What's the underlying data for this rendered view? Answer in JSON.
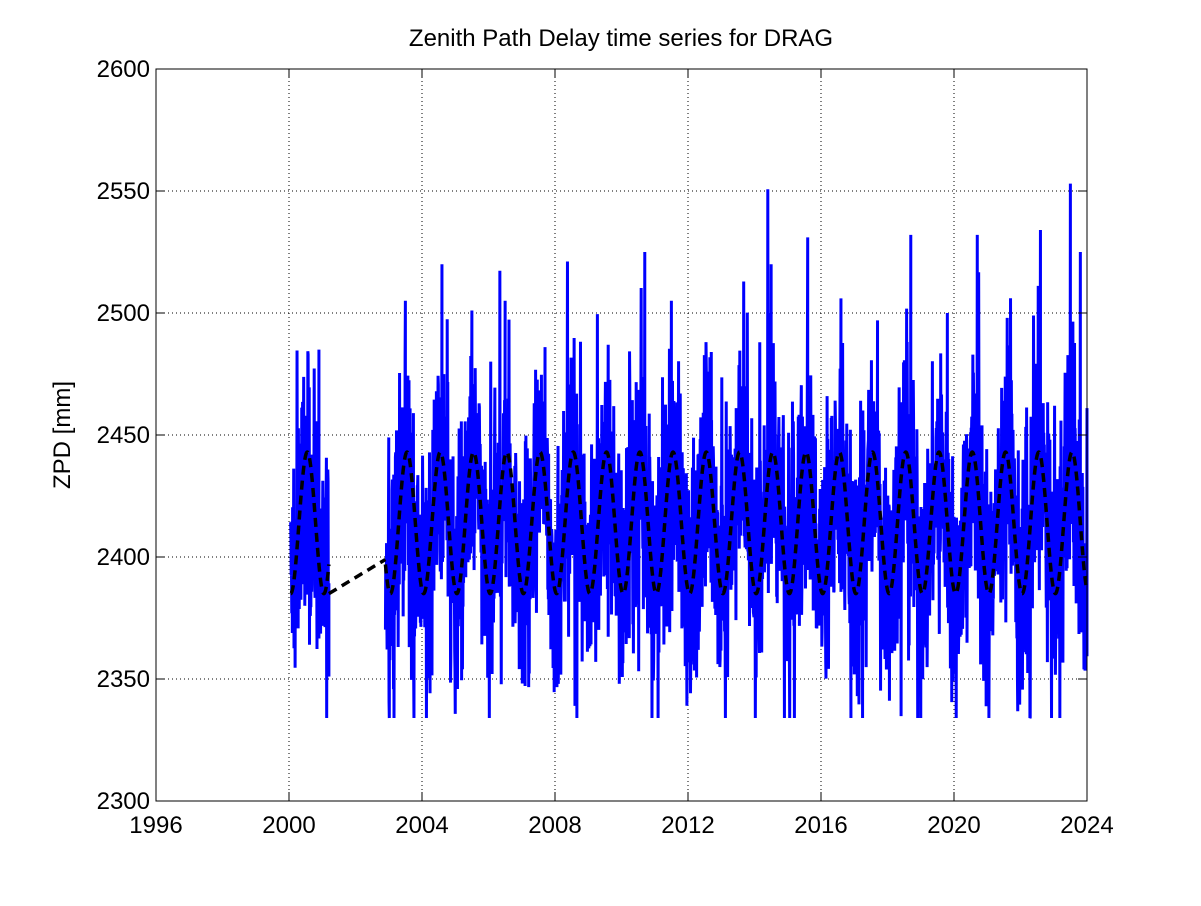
{
  "chart_data": {
    "type": "line",
    "title": "Zenith Path Delay time series for DRAG",
    "xlabel": "",
    "ylabel": "ZPD [mm]",
    "xlim": [
      1996,
      2024
    ],
    "ylim": [
      2300,
      2600
    ],
    "xticks": [
      "1996",
      "2000",
      "2004",
      "2008",
      "2012",
      "2016",
      "2020",
      "2024"
    ],
    "yticks": [
      "2300",
      "2350",
      "2400",
      "2450",
      "2500",
      "2550",
      "2600"
    ],
    "grid": true,
    "grid_style": "dotted",
    "legend": "none",
    "series": [
      {
        "style": "solid",
        "color": "#0000ff",
        "segments": [
          [
            2000.05,
            2001.2
          ],
          [
            2002.9,
            2024.0
          ]
        ],
        "baseline_mm": 2413,
        "seasonal_amplitude_mm": 29,
        "noise_range_mm": [
          2334,
          2553
        ],
        "x": [
          2000.1,
          2000.6,
          2000.9,
          2001.2,
          2003.0,
          2003.5,
          2004.6,
          2005.5,
          2006.5,
          2007.7,
          2008.1,
          2008.6,
          2009.6,
          2010.7,
          2011.5,
          2012.7,
          2013.7,
          2014.5,
          2015.6,
          2016.6,
          2016.9,
          2017.7,
          2018.7,
          2019.0,
          2019.8,
          2020.7,
          2021.6,
          2022.6,
          2023.5,
          2023.8,
          2024.0
        ],
        "y": [
          2375,
          2469,
          2485,
          2351,
          2449,
          2505,
          2520,
          2501,
          2505,
          2486,
          2348,
          2339,
          2487,
          2525,
          2505,
          2484,
          2470,
          2520,
          2531,
          2506,
          2334,
          2497,
          2532,
          2343,
          2500,
          2532,
          2498,
          2534,
          2553,
          2525,
          2461
        ]
      },
      {
        "style": "dashed",
        "color": "#000000",
        "segments": [
          [
            2000.05,
            2001.2
          ],
          [
            2002.9,
            2024.0
          ]
        ],
        "mean_mm": 2414,
        "amplitude_mm": 29,
        "peak_phase_year_fraction": 0.55,
        "gap_connector": [
          [
            2001.2,
            2385
          ],
          [
            2002.9,
            2399
          ]
        ]
      }
    ]
  }
}
